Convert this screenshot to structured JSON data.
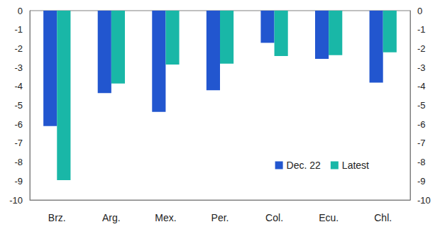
{
  "chart_data": {
    "type": "bar",
    "categories": [
      "Brz.",
      "Arg.",
      "Mex.",
      "Per.",
      "Col.",
      "Ecu.",
      "Chl."
    ],
    "series": [
      {
        "name": "Dec. 22",
        "color": "#2256cf",
        "values": [
          -6.1,
          -4.35,
          -5.35,
          -4.2,
          -1.7,
          -2.55,
          -3.8
        ]
      },
      {
        "name": "Latest",
        "color": "#19b7a7",
        "values": [
          -8.95,
          -3.85,
          -2.85,
          -2.8,
          -2.4,
          -2.35,
          -2.2
        ]
      }
    ],
    "ylim": [
      -10,
      0
    ],
    "yticks": [
      -10,
      -9,
      -8,
      -7,
      -6,
      -5,
      -4,
      -3,
      -2,
      -1,
      0
    ],
    "grid": false,
    "legend": "lower right"
  }
}
